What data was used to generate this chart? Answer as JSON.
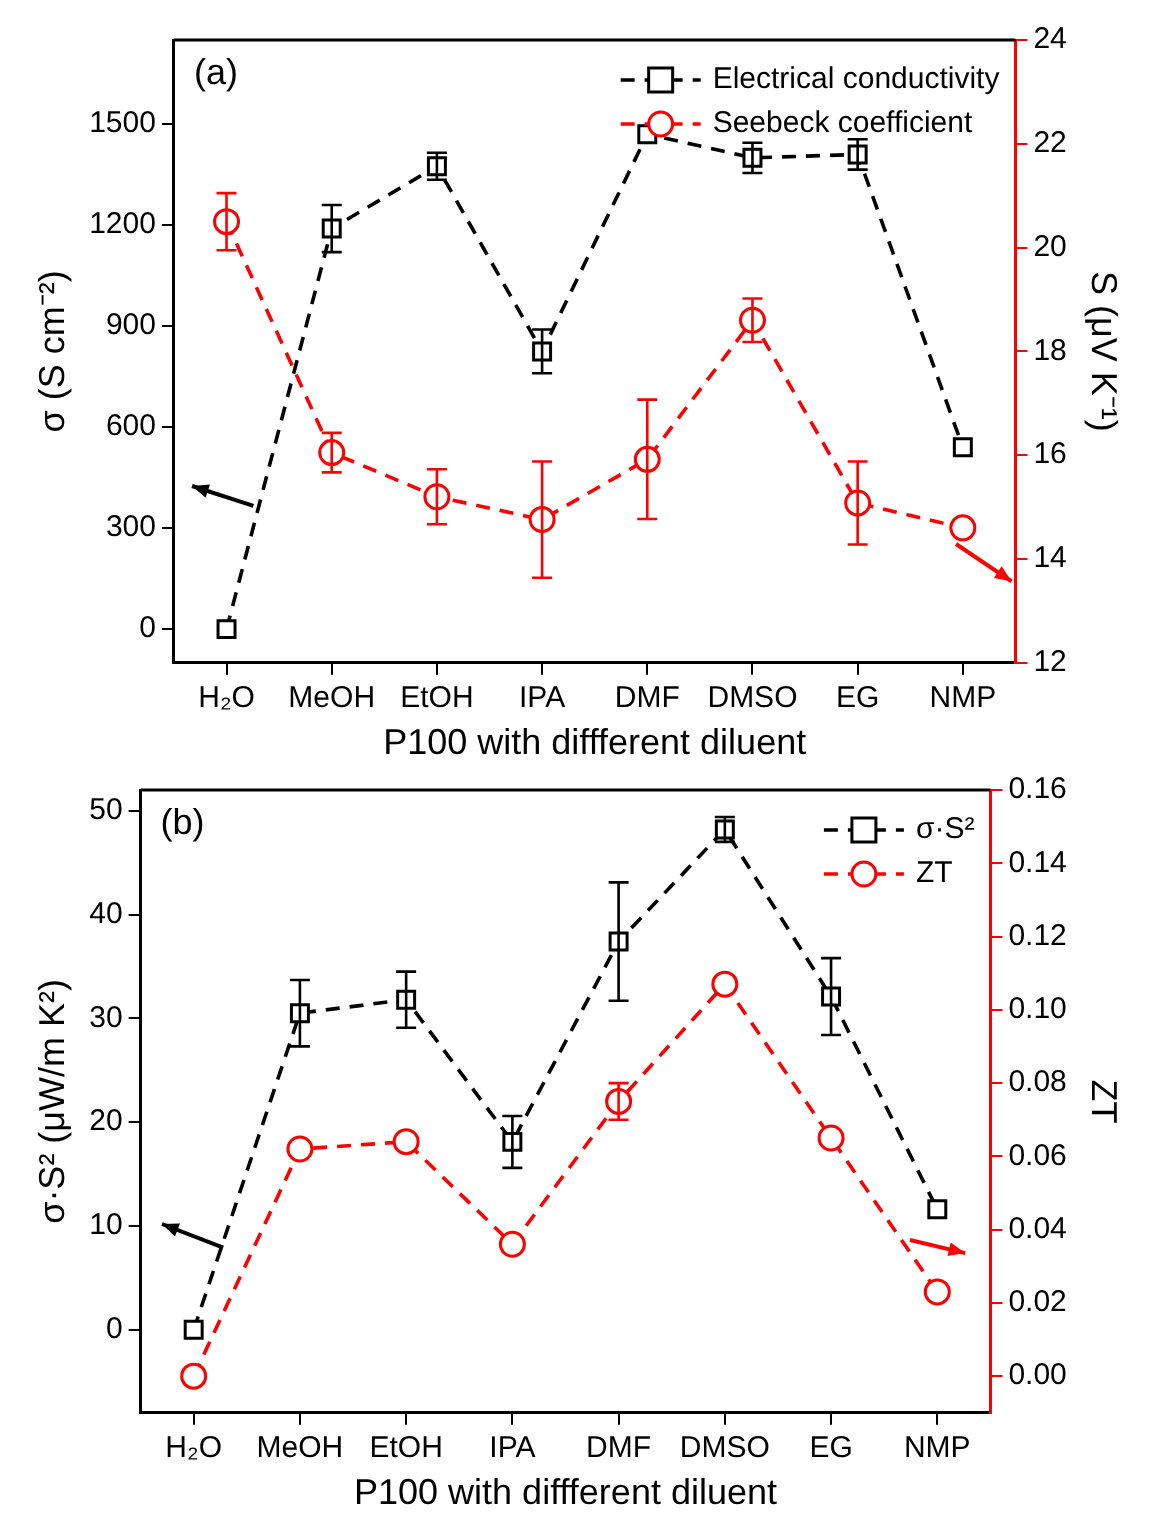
{
  "chart_data": [
    {
      "type": "line",
      "categories": [
        "H₂O",
        "MeOH",
        "EtOH",
        "IPA",
        "DMF",
        "DMSO",
        "EG",
        "NMP"
      ],
      "xlabel": "P100 with diffferent diluent",
      "ylabel": "σ (S cm⁻²)",
      "y2label": "S (μV K⁻¹)",
      "annotations": [
        "(a)"
      ],
      "ylim": [
        -100,
        1750
      ],
      "yticks": [
        0,
        300,
        600,
        900,
        1200,
        1500
      ],
      "y2lim": [
        12,
        24
      ],
      "y2ticks": [
        12,
        14,
        16,
        18,
        20,
        22,
        24
      ],
      "legend": "top right",
      "grid": false,
      "line_style": "dashed",
      "series": [
        {
          "name": "Electrical conductivity",
          "color": "#000000",
          "marker": "square",
          "values": [
            0,
            1190,
            1375,
            825,
            1470,
            1400,
            1410,
            540
          ],
          "errors": [
            null,
            70,
            40,
            65,
            null,
            45,
            45,
            null
          ]
        },
        {
          "name": "Seebeck coefficient",
          "color": "#ff0000",
          "marker": "circle",
          "axis": "y2",
          "values": [
            20.5,
            16.05,
            15.2,
            14.76,
            15.92,
            18.6,
            15.08,
            14.6
          ],
          "errors": [
            0.55,
            0.38,
            0.53,
            1.12,
            1.15,
            0.42,
            0.8,
            null
          ]
        }
      ]
    },
    {
      "type": "line",
      "categories": [
        "H₂O",
        "MeOH",
        "EtOH",
        "IPA",
        "DMF",
        "DMSO",
        "EG",
        "NMP"
      ],
      "xlabel": "P100 with diffferent diluent",
      "ylabel": "σ·S² (μW/m K²)",
      "y2label": "ZT",
      "annotations": [
        "(b)"
      ],
      "ylim": [
        -8,
        52
      ],
      "yticks": [
        0,
        10,
        20,
        30,
        40,
        50
      ],
      "y2lim": [
        -0.01,
        0.16
      ],
      "y2ticks": [
        {
          "value": 0,
          "label": "0.00"
        },
        {
          "value": 0.02,
          "label": "0.02"
        },
        {
          "value": 0.04,
          "label": "0.04"
        },
        {
          "value": 0.06,
          "label": "0.06"
        },
        {
          "value": 0.08,
          "label": "0.08"
        },
        {
          "value": 0.1,
          "label": "0.10"
        },
        {
          "value": 0.12,
          "label": "0.12"
        },
        {
          "value": 0.14,
          "label": "0.14"
        },
        {
          "value": 0.16,
          "label": "0.16"
        }
      ],
      "legend": "top right",
      "grid": false,
      "line_style": "dashed",
      "series": [
        {
          "name": "σ·S²",
          "color": "#000000",
          "marker": "square",
          "values": [
            0,
            30.5,
            31.8,
            18.1,
            37.4,
            48.2,
            32.1,
            11.6
          ],
          "errors": [
            null,
            3.2,
            2.7,
            2.5,
            5.7,
            1.2,
            3.7,
            null
          ]
        },
        {
          "name": "ZT",
          "color": "#ff0000",
          "marker": "circle",
          "axis": "y2",
          "values": [
            0,
            0.062,
            0.064,
            0.036,
            0.075,
            0.107,
            0.065,
            0.023
          ],
          "errors": [
            null,
            null,
            null,
            null,
            0.005,
            null,
            null,
            null
          ]
        }
      ]
    }
  ]
}
